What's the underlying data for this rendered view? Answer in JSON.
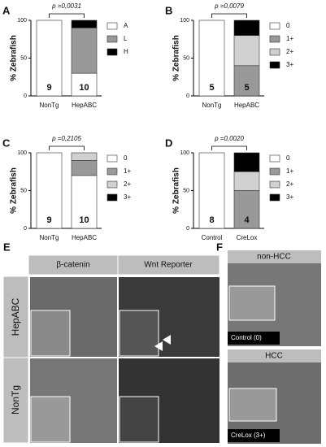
{
  "chart_data": [
    {
      "type": "bar",
      "stacked": true,
      "panel": "A",
      "p_value": "p =0,0031",
      "ylabel": "% Zebrafish",
      "categories": [
        "NonTg",
        "HepABC"
      ],
      "counts": [
        9,
        10
      ],
      "ylim": [
        0,
        100
      ],
      "yticks": [
        0,
        50,
        100
      ],
      "legend": "right",
      "series": [
        {
          "name": "A",
          "color": "#ffffff",
          "values": [
            100,
            30
          ]
        },
        {
          "name": "L",
          "color": "#999999",
          "values": [
            0,
            60
          ]
        },
        {
          "name": "H",
          "color": "#000000",
          "values": [
            0,
            10
          ]
        }
      ]
    },
    {
      "type": "bar",
      "stacked": true,
      "panel": "B",
      "p_value": "p =0,0079",
      "ylabel": "% Zebrafish",
      "categories": [
        "NonTg",
        "HepABC"
      ],
      "counts": [
        5,
        5
      ],
      "ylim": [
        0,
        100
      ],
      "yticks": [
        0,
        50,
        100
      ],
      "legend": "right",
      "series": [
        {
          "name": "0",
          "color": "#ffffff",
          "values": [
            100,
            0
          ]
        },
        {
          "name": "1+",
          "color": "#999999",
          "values": [
            0,
            40
          ]
        },
        {
          "name": "2+",
          "color": "#d0d0d0",
          "values": [
            0,
            40
          ]
        },
        {
          "name": "3+",
          "color": "#000000",
          "values": [
            0,
            20
          ]
        }
      ]
    },
    {
      "type": "bar",
      "stacked": true,
      "panel": "C",
      "p_value": "p =0,2105",
      "ylabel": "% Zebrafish",
      "categories": [
        "NonTg",
        "HepABC"
      ],
      "counts": [
        9,
        10
      ],
      "ylim": [
        0,
        100
      ],
      "yticks": [
        0,
        50,
        100
      ],
      "legend": "right",
      "series": [
        {
          "name": "0",
          "color": "#ffffff",
          "values": [
            100,
            70
          ]
        },
        {
          "name": "1+",
          "color": "#999999",
          "values": [
            0,
            20
          ]
        },
        {
          "name": "2+",
          "color": "#d0d0d0",
          "values": [
            0,
            10
          ]
        },
        {
          "name": "3+",
          "color": "#000000",
          "values": [
            0,
            0
          ]
        }
      ]
    },
    {
      "type": "bar",
      "stacked": true,
      "panel": "D",
      "p_value": "p =0,0020",
      "ylabel": "% Zebrafish",
      "categories": [
        "Control",
        "CreLox"
      ],
      "counts": [
        8,
        4
      ],
      "ylim": [
        0,
        100
      ],
      "yticks": [
        0,
        50,
        100
      ],
      "legend": "right",
      "series": [
        {
          "name": "0",
          "color": "#ffffff",
          "values": [
            100,
            0
          ]
        },
        {
          "name": "1+",
          "color": "#999999",
          "values": [
            0,
            50
          ]
        },
        {
          "name": "2+",
          "color": "#d0d0d0",
          "values": [
            0,
            25
          ]
        },
        {
          "name": "3+",
          "color": "#000000",
          "values": [
            0,
            25
          ]
        }
      ]
    }
  ],
  "panel_e": {
    "label": "E",
    "columns": [
      "β-catenin",
      "Wnt Reporter"
    ],
    "rows": [
      "HepABC",
      "NonTg"
    ]
  },
  "panel_f": {
    "label": "F",
    "sections": [
      {
        "title": "non-HCC",
        "caption": "Control (0)"
      },
      {
        "title": "HCC",
        "caption": "CreLox (3+)"
      }
    ]
  }
}
